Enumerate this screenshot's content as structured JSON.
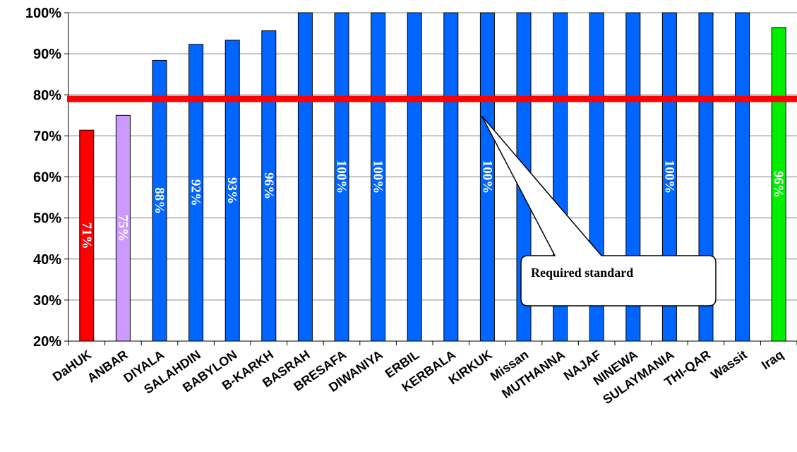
{
  "chart_data": {
    "type": "bar",
    "categories": [
      "DaHUK",
      "ANBAR",
      "DIYALA",
      "SALAHDIN",
      "BABYLON",
      "B-KARKH",
      "BASRAH",
      "BRESAFA",
      "DIWANIYA",
      "ERBIL",
      "KERBALA",
      "KIRKUK",
      "Missan",
      "MUTHANNA",
      "NAJAF",
      "NINEWA",
      "SULAYMANIA",
      "THI-QAR",
      "Wassit",
      "Iraq"
    ],
    "values": [
      71.4,
      75,
      88.4,
      92.3,
      93.3,
      95.6,
      100,
      100,
      100,
      100,
      100,
      100,
      100,
      100,
      100,
      100,
      100,
      100,
      100,
      96.4
    ],
    "data_labels": [
      "71%",
      "75%",
      "88%",
      "92%",
      "93%",
      "96%",
      "",
      "100%",
      "100%",
      "",
      "",
      "100%",
      "",
      "",
      "",
      "",
      "100%",
      "",
      "",
      "96%"
    ],
    "colors": [
      "#ff0000",
      "#cc99ff",
      "#0066ff",
      "#0066ff",
      "#0066ff",
      "#0066ff",
      "#0066ff",
      "#0066ff",
      "#0066ff",
      "#0066ff",
      "#0066ff",
      "#0066ff",
      "#0066ff",
      "#0066ff",
      "#0066ff",
      "#0066ff",
      "#0066ff",
      "#0066ff",
      "#0066ff",
      "#00ee00"
    ],
    "ylim": [
      20,
      100
    ],
    "yticks": [
      "20%",
      "30%",
      "40%",
      "50%",
      "60%",
      "70%",
      "80%",
      "90%",
      "100%"
    ],
    "ytick_values": [
      20,
      30,
      40,
      50,
      60,
      70,
      80,
      90,
      100
    ],
    "reference_line": {
      "value": 79,
      "color": "#ff0000"
    },
    "annotation": {
      "text": "Required standard",
      "points_to_category": "KIRKUK"
    },
    "title": "",
    "xlabel": "",
    "ylabel": ""
  }
}
